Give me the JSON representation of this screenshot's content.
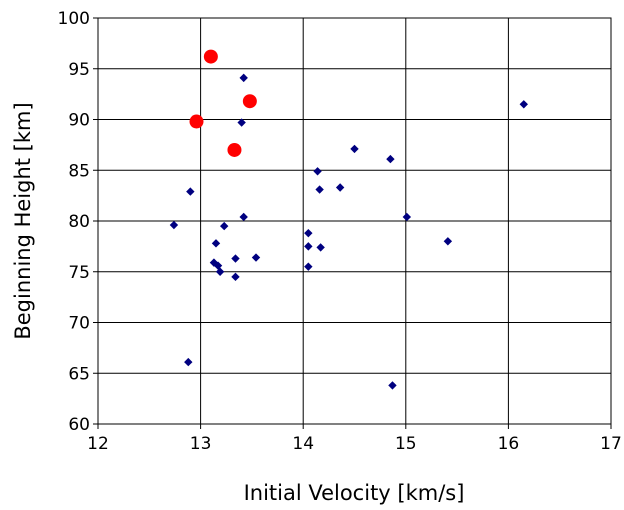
{
  "chart_data": {
    "type": "scatter",
    "xlabel": "Initial Velocity [km/s]",
    "ylabel": "Beginning Height [km]",
    "xlim": [
      12,
      17
    ],
    "ylim": [
      60,
      100
    ],
    "x_ticks": [
      "12",
      "13",
      "14",
      "15",
      "16",
      "17"
    ],
    "y_ticks": [
      "60",
      "65",
      "70",
      "75",
      "80",
      "85",
      "90",
      "95",
      "100"
    ],
    "grid": true,
    "series": [
      {
        "marker": "diamond",
        "color": "#000080",
        "points": [
          [
            13.42,
            94.1
          ],
          [
            13.4,
            89.7
          ],
          [
            12.9,
            82.9
          ],
          [
            12.74,
            79.6
          ],
          [
            13.23,
            79.5
          ],
          [
            13.42,
            80.4
          ],
          [
            13.15,
            77.8
          ],
          [
            13.13,
            75.9
          ],
          [
            13.17,
            75.6
          ],
          [
            13.19,
            75.0
          ],
          [
            13.34,
            76.3
          ],
          [
            13.54,
            76.4
          ],
          [
            13.34,
            74.5
          ],
          [
            12.88,
            66.1
          ],
          [
            14.05,
            78.8
          ],
          [
            14.05,
            77.5
          ],
          [
            14.17,
            77.4
          ],
          [
            14.05,
            75.5
          ],
          [
            14.14,
            84.9
          ],
          [
            14.16,
            83.1
          ],
          [
            14.36,
            83.3
          ],
          [
            14.5,
            87.1
          ],
          [
            14.85,
            86.1
          ],
          [
            15.01,
            80.4
          ],
          [
            14.87,
            63.8
          ],
          [
            15.41,
            78.0
          ],
          [
            16.15,
            91.5
          ]
        ]
      },
      {
        "marker": "circle",
        "color": "#ff0000",
        "points": [
          [
            13.1,
            96.2
          ],
          [
            13.48,
            91.8
          ],
          [
            12.96,
            89.8
          ],
          [
            13.33,
            87.0
          ]
        ]
      }
    ]
  }
}
